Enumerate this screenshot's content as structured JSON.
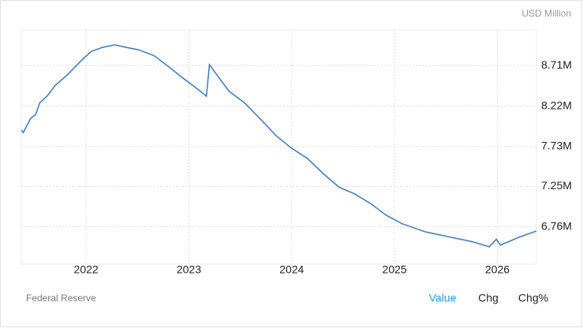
{
  "chart_data": {
    "type": "line",
    "unit_label": "USD Million",
    "source": "Federal Reserve",
    "tabs": [
      "Value",
      "Chg",
      "Chg%"
    ],
    "x": [
      2021.37,
      2021.39,
      2021.46,
      2021.51,
      2021.55,
      2021.62,
      2021.7,
      2021.82,
      2021.89,
      2021.97,
      2022.05,
      2022.16,
      2022.28,
      2022.39,
      2022.51,
      2022.66,
      2022.81,
      2022.93,
      2023.08,
      2023.17,
      2023.2,
      2023.27,
      2023.39,
      2023.54,
      2023.69,
      2023.85,
      2024.0,
      2024.15,
      2024.31,
      2024.46,
      2024.61,
      2024.77,
      2024.92,
      2025.07,
      2025.3,
      2025.53,
      2025.76,
      2025.92,
      2025.99,
      2026.03,
      2026.22,
      2026.38
    ],
    "series": [
      {
        "color": "#4a7db5",
        "values": [
          7930000,
          7900000,
          8070000,
          8120000,
          8260000,
          8340000,
          8470000,
          8600000,
          8690000,
          8790000,
          8880000,
          8930000,
          8960000,
          8930000,
          8900000,
          8830000,
          8690000,
          8570000,
          8430000,
          8340000,
          8720000,
          8600000,
          8400000,
          8260000,
          8070000,
          7860000,
          7710000,
          7590000,
          7400000,
          7240000,
          7160000,
          7040000,
          6900000,
          6800000,
          6700000,
          6640000,
          6580000,
          6520000,
          6610000,
          6540000,
          6640000,
          6710000
        ]
      }
    ],
    "xlim": [
      2021.37,
      2026.38
    ],
    "xticks": [
      2022,
      2023,
      2024,
      2025,
      2026
    ],
    "ylim": [
      6310000,
      9140000
    ],
    "yticks": [
      {
        "value": 6760000,
        "label": "6.76M"
      },
      {
        "value": 7250000,
        "label": "7.25M"
      },
      {
        "value": 7730000,
        "label": "7.73M"
      },
      {
        "value": 8220000,
        "label": "8.22M"
      },
      {
        "value": 8710000,
        "label": "8.71M"
      }
    ],
    "grid": true
  }
}
